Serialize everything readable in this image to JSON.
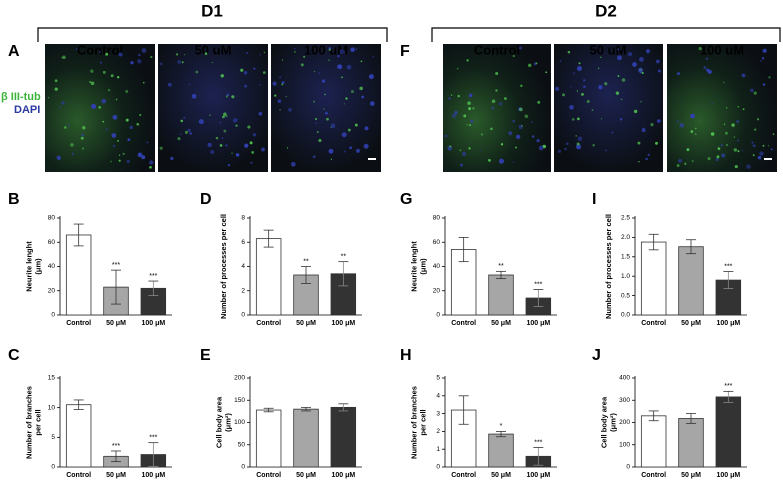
{
  "figure": {
    "groups": [
      {
        "title": "D1",
        "letter": "A",
        "columns": [
          "Control",
          "50 uM",
          "100 uM"
        ]
      },
      {
        "title": "D2",
        "letter": "F",
        "columns": [
          "Control",
          "50 uM",
          "100 uM"
        ]
      }
    ],
    "stains": [
      "β III-tub",
      "DAPI"
    ]
  },
  "chart_data": [
    {
      "type": "bar",
      "panel": "B",
      "ylabel": [
        "Neurite lenght",
        "(μm)"
      ],
      "categories": [
        "Control",
        "50 μM",
        "100 μM"
      ],
      "values": [
        66,
        23,
        22
      ],
      "errors": [
        9,
        14,
        6
      ],
      "annotations": [
        null,
        "***",
        "***"
      ],
      "colors": [
        "#ffffff",
        "#a6a6a6",
        "#333333"
      ],
      "ylim": [
        0,
        80
      ],
      "yticks": [
        0,
        20,
        40,
        60,
        80
      ]
    },
    {
      "type": "bar",
      "panel": "C",
      "ylabel": [
        "Number of branches",
        "per cell"
      ],
      "categories": [
        "Control",
        "50 μM",
        "100 μM"
      ],
      "values": [
        10.5,
        1.8,
        2.1
      ],
      "errors": [
        0.8,
        0.9,
        2
      ],
      "annotations": [
        null,
        "***",
        "***"
      ],
      "colors": [
        "#ffffff",
        "#a6a6a6",
        "#333333"
      ],
      "ylim": [
        0,
        15
      ],
      "yticks": [
        0,
        5,
        10,
        15
      ]
    },
    {
      "type": "bar",
      "panel": "D",
      "ylabel": [
        "Number of processes per cell"
      ],
      "categories": [
        "Control",
        "50 μM",
        "100 μM"
      ],
      "values": [
        6.3,
        3.3,
        3.4
      ],
      "errors": [
        0.7,
        0.7,
        1.0
      ],
      "annotations": [
        null,
        "**",
        "**"
      ],
      "colors": [
        "#ffffff",
        "#a6a6a6",
        "#333333"
      ],
      "ylim": [
        0,
        8
      ],
      "yticks": [
        0,
        2,
        4,
        6,
        8
      ]
    },
    {
      "type": "bar",
      "panel": "E",
      "ylabel": [
        "Cell body area",
        "(μm²)"
      ],
      "categories": [
        "Control",
        "50 μM",
        "100 μM"
      ],
      "values": [
        128,
        130,
        134
      ],
      "errors": [
        4,
        4,
        8
      ],
      "annotations": [
        null,
        null,
        null
      ],
      "colors": [
        "#ffffff",
        "#a6a6a6",
        "#333333"
      ],
      "ylim": [
        0,
        200
      ],
      "yticks": [
        0,
        50,
        100,
        150,
        200
      ]
    },
    {
      "type": "bar",
      "panel": "G",
      "ylabel": [
        "Neurite lenght",
        "(μm)"
      ],
      "categories": [
        "Control",
        "50 μM",
        "100 μM"
      ],
      "values": [
        54,
        33,
        14
      ],
      "errors": [
        10,
        3,
        7
      ],
      "annotations": [
        null,
        "**",
        "***"
      ],
      "colors": [
        "#ffffff",
        "#a6a6a6",
        "#333333"
      ],
      "ylim": [
        0,
        80
      ],
      "yticks": [
        0,
        20,
        40,
        60,
        80
      ]
    },
    {
      "type": "bar",
      "panel": "H",
      "ylabel": [
        "Number of branches",
        "per cell"
      ],
      "categories": [
        "Control",
        "50 μM",
        "100 μM"
      ],
      "values": [
        3.2,
        1.85,
        0.6
      ],
      "errors": [
        0.8,
        0.15,
        0.5
      ],
      "annotations": [
        null,
        "*",
        "***"
      ],
      "colors": [
        "#ffffff",
        "#a6a6a6",
        "#333333"
      ],
      "ylim": [
        0,
        5
      ],
      "yticks": [
        0,
        1,
        2,
        3,
        4,
        5
      ]
    },
    {
      "type": "bar",
      "panel": "I",
      "ylabel": [
        "Number of processes per cell"
      ],
      "categories": [
        "Control",
        "50 μM",
        "100 μM"
      ],
      "values": [
        1.88,
        1.76,
        0.9
      ],
      "errors": [
        0.2,
        0.18,
        0.22
      ],
      "annotations": [
        null,
        null,
        "***"
      ],
      "colors": [
        "#ffffff",
        "#a6a6a6",
        "#333333"
      ],
      "ylim": [
        0,
        2.5
      ],
      "yticks": [
        {
          "value": 0,
          "label": "0.0"
        },
        0.5,
        {
          "value": 1,
          "label": "1.0"
        },
        1.5,
        {
          "value": 2,
          "label": "2.0"
        },
        2.5
      ]
    },
    {
      "type": "bar",
      "panel": "J",
      "ylabel": [
        "Cell body area",
        "(μm²)"
      ],
      "categories": [
        "Control",
        "50 μM",
        "100 μM"
      ],
      "values": [
        230,
        218,
        315
      ],
      "errors": [
        22,
        22,
        25
      ],
      "annotations": [
        null,
        null,
        "***"
      ],
      "colors": [
        "#ffffff",
        "#a6a6a6",
        "#333333"
      ],
      "ylim": [
        0,
        400
      ],
      "yticks": [
        0,
        100,
        200,
        300,
        400
      ]
    }
  ]
}
